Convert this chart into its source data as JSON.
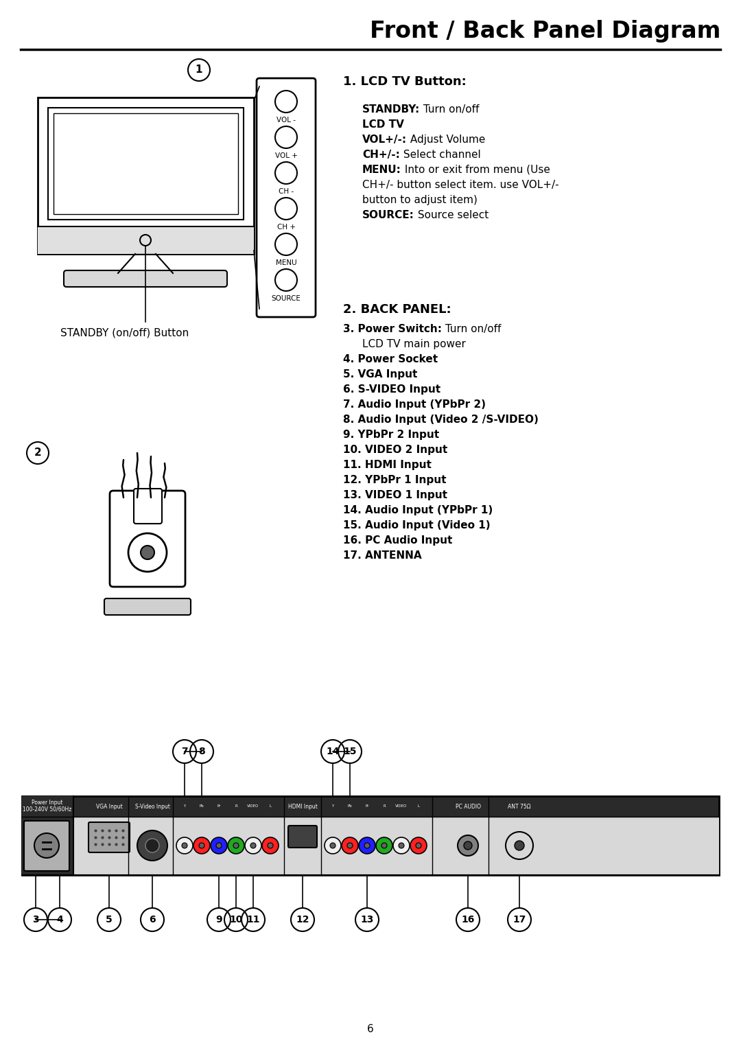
{
  "title": "Front / Back Panel Diagram",
  "page_number": "6",
  "background_color": "#ffffff",
  "title_fontsize": 24,
  "section1_label": "1",
  "section2_label": "2",
  "lcd_tv_button_title": "1. LCD TV Button:",
  "lcd_tv_button_items": [
    {
      "bold": "STANDBY:",
      "normal": " Turn on/off"
    },
    {
      "bold": "LCD TV",
      "normal": ""
    },
    {
      "bold": "VOL+/-:",
      "normal": " Adjust Volume"
    },
    {
      "bold": "CH+/-:",
      "normal": " Select channel"
    },
    {
      "bold": "MENU:",
      "normal": " Into or exit from menu (Use"
    },
    {
      "bold": "",
      "normal": "CH+/- button select item. use VOL+/-"
    },
    {
      "bold": "",
      "normal": "button to adjust item)"
    },
    {
      "bold": "SOURCE:",
      "normal": " Source select"
    }
  ],
  "back_panel_title": "2. BACK PANEL:",
  "back_panel_items": [
    {
      "bold": "3. Power Switch:",
      "normal": " Turn on/off"
    },
    {
      "bold": "",
      "normal": "LCD TV main power"
    },
    {
      "bold": "4. Power Socket",
      "normal": ""
    },
    {
      "bold": "5. VGA Input",
      "normal": ""
    },
    {
      "bold": "6. S-VIDEO Input",
      "normal": ""
    },
    {
      "bold": "7. Audio Input (YPbPr 2)",
      "normal": ""
    },
    {
      "bold": "8. Audio Input (Video 2 /S-VIDEO)",
      "normal": ""
    },
    {
      "bold": "9. YPbPr 2 Input",
      "normal": ""
    },
    {
      "bold": "10. VIDEO 2 Input",
      "normal": ""
    },
    {
      "bold": "11. HDMI Input",
      "normal": ""
    },
    {
      "bold": "12. YPbPr 1 Input",
      "normal": ""
    },
    {
      "bold": "13. VIDEO 1 Input",
      "normal": ""
    },
    {
      "bold": "14. Audio Input (YPbPr 1)",
      "normal": ""
    },
    {
      "bold": "15. Audio Input (Video 1)",
      "normal": ""
    },
    {
      "bold": "16. PC Audio Input",
      "normal": ""
    },
    {
      "bold": "17. ANTENNA",
      "normal": ""
    }
  ],
  "button_labels": [
    "VOL -",
    "VOL +",
    "CH -",
    "CH +",
    "MENU",
    "SOURCE"
  ],
  "standby_label": "STANDBY (on/off) Button"
}
